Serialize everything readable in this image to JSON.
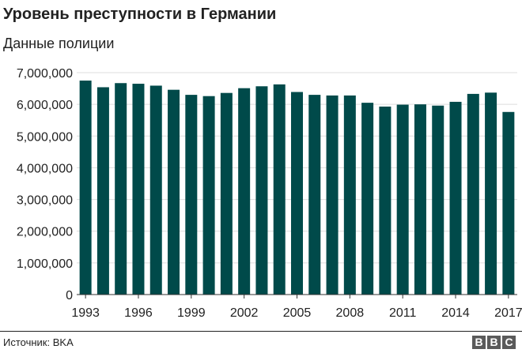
{
  "header": {
    "title": "Уровень преступности в Германии",
    "subtitle": "Данные полиции"
  },
  "footer": {
    "source": "Источник: BKA",
    "logo_letters": [
      "B",
      "B",
      "C"
    ]
  },
  "colors": {
    "bar": "#004a4a",
    "grid": "#dddddd",
    "text": "#222222"
  },
  "chart_data": {
    "type": "bar",
    "title": "Уровень преступности в Германии",
    "subtitle": "Данные полиции",
    "xlabel": "",
    "ylabel": "",
    "categories": [
      1993,
      1994,
      1995,
      1996,
      1997,
      1998,
      1999,
      2000,
      2001,
      2002,
      2003,
      2004,
      2005,
      2006,
      2007,
      2008,
      2009,
      2010,
      2011,
      2012,
      2013,
      2014,
      2015,
      2016,
      2017
    ],
    "values": [
      6750000,
      6540000,
      6670000,
      6650000,
      6590000,
      6460000,
      6300000,
      6260000,
      6360000,
      6510000,
      6570000,
      6630000,
      6390000,
      6300000,
      6280000,
      6280000,
      6050000,
      5930000,
      5990000,
      6000000,
      5960000,
      6080000,
      6330000,
      6370000,
      5760000
    ],
    "x_tick_labels": [
      "1993",
      "1996",
      "1999",
      "2002",
      "2005",
      "2008",
      "2011",
      "2014",
      "2017"
    ],
    "y_tick_values": [
      0,
      1000000,
      2000000,
      3000000,
      4000000,
      5000000,
      6000000,
      7000000
    ],
    "y_tick_labels": [
      "0",
      "1,000,000",
      "2,000,000",
      "3,000,000",
      "4,000,000",
      "5,000,000",
      "6,000,000",
      "7,000,000"
    ],
    "ylim": [
      0,
      7000000
    ],
    "grid": true,
    "legend": "none"
  }
}
